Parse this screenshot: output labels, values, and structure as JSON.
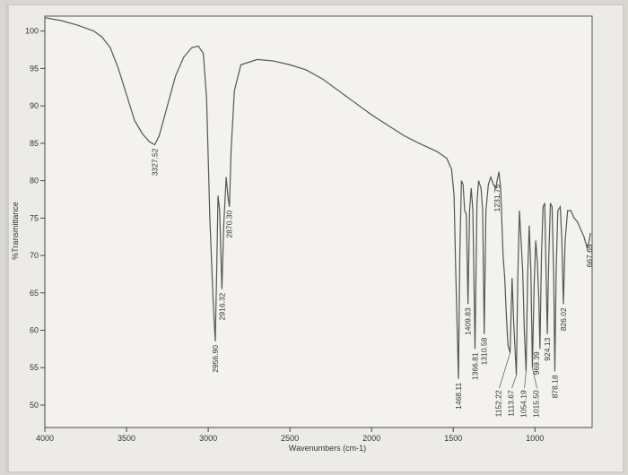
{
  "chart_data": {
    "type": "line",
    "title": "",
    "xlabel": "Wavenumbers (cm-1)",
    "ylabel": "%Transmittance",
    "xlim": [
      4000,
      650
    ],
    "ylim": [
      47,
      102
    ],
    "x_ticks": [
      "4000",
      "3500",
      "3000",
      "2500",
      "2000",
      "1500",
      "1000"
    ],
    "x_tick_values": [
      4000,
      3500,
      3000,
      2500,
      2000,
      1500,
      1000
    ],
    "y_ticks": [
      "100",
      "95",
      "90",
      "85",
      "80",
      "75",
      "70",
      "65",
      "60",
      "55",
      "50"
    ],
    "y_tick_values": [
      100,
      95,
      90,
      85,
      80,
      75,
      70,
      65,
      60,
      55,
      50
    ],
    "grid": false,
    "series": [
      {
        "points": [
          [
            4000,
            101.8
          ],
          [
            3900,
            101.4
          ],
          [
            3800,
            100.8
          ],
          [
            3700,
            100.0
          ],
          [
            3650,
            99.2
          ],
          [
            3600,
            97.8
          ],
          [
            3550,
            95.0
          ],
          [
            3500,
            91.5
          ],
          [
            3450,
            88.0
          ],
          [
            3400,
            86.2
          ],
          [
            3360,
            85.2
          ],
          [
            3327.52,
            84.8
          ],
          [
            3300,
            86.0
          ],
          [
            3250,
            90.0
          ],
          [
            3200,
            94.0
          ],
          [
            3150,
            96.5
          ],
          [
            3100,
            97.8
          ],
          [
            3060,
            98.0
          ],
          [
            3030,
            97.0
          ],
          [
            3010,
            91.0
          ],
          [
            2990,
            75.0
          ],
          [
            2970,
            64.0
          ],
          [
            2956.9,
            58.5
          ],
          [
            2948,
            68.0
          ],
          [
            2940,
            78.0
          ],
          [
            2930,
            76.0
          ],
          [
            2916.32,
            65.5
          ],
          [
            2905,
            74.0
          ],
          [
            2890,
            80.5
          ],
          [
            2880,
            78.0
          ],
          [
            2870.3,
            76.5
          ],
          [
            2860,
            84.0
          ],
          [
            2840,
            92.0
          ],
          [
            2800,
            95.5
          ],
          [
            2700,
            96.2
          ],
          [
            2600,
            96.0
          ],
          [
            2500,
            95.5
          ],
          [
            2400,
            94.8
          ],
          [
            2300,
            93.6
          ],
          [
            2200,
            92.0
          ],
          [
            2100,
            90.4
          ],
          [
            2000,
            88.8
          ],
          [
            1900,
            87.4
          ],
          [
            1800,
            86.0
          ],
          [
            1700,
            84.9
          ],
          [
            1600,
            83.9
          ],
          [
            1540,
            83.0
          ],
          [
            1510,
            81.5
          ],
          [
            1495,
            78.0
          ],
          [
            1485,
            68.0
          ],
          [
            1468.11,
            53.5
          ],
          [
            1460,
            70.0
          ],
          [
            1450,
            80.0
          ],
          [
            1440,
            79.5
          ],
          [
            1430,
            76.0
          ],
          [
            1420,
            75.5
          ],
          [
            1409.83,
            63.5
          ],
          [
            1400,
            76.0
          ],
          [
            1390,
            79.0
          ],
          [
            1380,
            76.0
          ],
          [
            1366.81,
            57.5
          ],
          [
            1355,
            77.0
          ],
          [
            1345,
            80.0
          ],
          [
            1330,
            79.0
          ],
          [
            1320,
            76.0
          ],
          [
            1310.58,
            59.5
          ],
          [
            1300,
            76.0
          ],
          [
            1285,
            79.5
          ],
          [
            1270,
            80.5
          ],
          [
            1255,
            79.5
          ],
          [
            1240,
            79.0
          ],
          [
            1231.75,
            80.0
          ],
          [
            1220,
            81.2
          ],
          [
            1210,
            79.0
          ],
          [
            1195,
            70.0
          ],
          [
            1185,
            67.0
          ],
          [
            1175,
            62.0
          ],
          [
            1165,
            58.0
          ],
          [
            1152.22,
            57.0
          ],
          [
            1140,
            67.0
          ],
          [
            1130,
            61.0
          ],
          [
            1113.67,
            54.0
          ],
          [
            1105,
            67.0
          ],
          [
            1095,
            76.0
          ],
          [
            1085,
            72.0
          ],
          [
            1075,
            68.0
          ],
          [
            1065,
            60.0
          ],
          [
            1054.19,
            54.5
          ],
          [
            1045,
            67.0
          ],
          [
            1035,
            74.0
          ],
          [
            1025,
            68.0
          ],
          [
            1015.5,
            55.0
          ],
          [
            1005,
            66.0
          ],
          [
            995,
            72.0
          ],
          [
            985,
            69.0
          ],
          [
            976,
            64.0
          ],
          [
            969.39,
            57.5
          ],
          [
            960,
            70.0
          ],
          [
            950,
            76.5
          ],
          [
            940,
            77.0
          ],
          [
            932,
            68.0
          ],
          [
            924.13,
            59.5
          ],
          [
            915,
            70.0
          ],
          [
            905,
            77.0
          ],
          [
            895,
            76.5
          ],
          [
            885,
            67.0
          ],
          [
            878.18,
            54.5
          ],
          [
            870,
            68.0
          ],
          [
            860,
            76.0
          ],
          [
            845,
            76.5
          ],
          [
            835,
            72.0
          ],
          [
            826.02,
            63.5
          ],
          [
            815,
            72.0
          ],
          [
            800,
            76.0
          ],
          [
            780,
            76.0
          ],
          [
            760,
            75.0
          ],
          [
            740,
            74.5
          ],
          [
            720,
            73.5
          ],
          [
            700,
            72.5
          ],
          [
            680,
            71.0
          ],
          [
            667.69,
            72.0
          ],
          [
            660,
            73.0
          ]
        ]
      }
    ],
    "peak_labels": [
      {
        "text": "3327.52",
        "x": 3327.52,
        "y": 84.8
      },
      {
        "text": "2956.90",
        "x": 2956.9,
        "y": 58.5
      },
      {
        "text": "2916.32",
        "x": 2916.32,
        "y": 65.5
      },
      {
        "text": "2870.30",
        "x": 2870.3,
        "y": 76.5
      },
      {
        "text": "1468.11",
        "x": 1468.11,
        "y": 53.5
      },
      {
        "text": "1409.83",
        "x": 1409.83,
        "y": 63.5
      },
      {
        "text": "1366.81",
        "x": 1366.81,
        "y": 57.5
      },
      {
        "text": "1310.58",
        "x": 1310.58,
        "y": 59.5
      },
      {
        "text": "1231.75",
        "x": 1231.75,
        "y": 80.0
      },
      {
        "text": "1152.22",
        "x": 1152.22,
        "y": 57.0
      },
      {
        "text": "1113.67",
        "x": 1113.67,
        "y": 54.0
      },
      {
        "text": "1054.19",
        "x": 1054.19,
        "y": 54.5
      },
      {
        "text": "1015.50",
        "x": 1015.5,
        "y": 55.0
      },
      {
        "text": "969.39",
        "x": 969.39,
        "y": 57.5
      },
      {
        "text": "924.13",
        "x": 924.13,
        "y": 59.5
      },
      {
        "text": "878.18",
        "x": 878.18,
        "y": 54.5
      },
      {
        "text": "826.02",
        "x": 826.02,
        "y": 63.5
      },
      {
        "text": "667.69",
        "x": 667.69,
        "y": 72.0
      }
    ]
  }
}
